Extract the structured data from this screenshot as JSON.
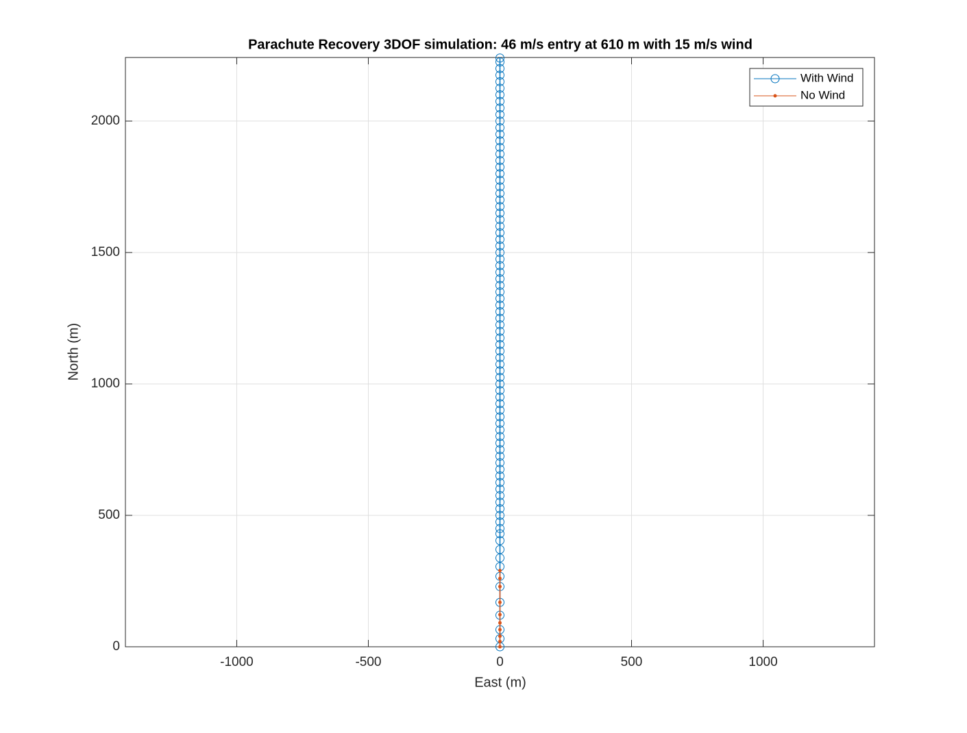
{
  "chart_data": {
    "type": "line",
    "title": "Parachute Recovery 3DOF simulation: 46 m/s entry at 610 m with 15 m/s wind",
    "xlabel": "East (m)",
    "ylabel": "North (m)",
    "xlim": [
      -1423,
      1423
    ],
    "ylim": [
      0,
      2242
    ],
    "xticks": [
      -1000,
      -500,
      0,
      500,
      1000
    ],
    "yticks": [
      0,
      500,
      1000,
      1500,
      2000
    ],
    "grid": true,
    "legend": "northeast",
    "series": [
      {
        "name": "With Wind",
        "color": "#0072BD",
        "marker": "circle",
        "x": [
          0,
          0,
          0,
          0,
          0,
          0,
          0,
          0,
          0,
          0,
          0,
          0,
          0,
          0,
          0,
          0,
          0,
          0,
          0,
          0,
          0,
          0,
          0,
          0,
          0,
          0,
          0,
          0,
          0,
          0,
          0,
          0,
          0,
          0,
          0,
          0,
          0,
          0,
          0,
          0,
          0,
          0,
          0,
          0,
          0,
          0,
          0,
          0,
          0,
          0,
          0,
          0,
          0,
          0,
          0,
          0,
          0,
          0,
          0,
          0,
          0,
          0,
          0,
          0,
          0,
          0,
          0,
          0,
          0,
          0,
          0,
          0,
          0,
          0,
          0,
          0,
          0,
          0,
          0,
          0,
          0,
          0,
          0,
          0,
          0
        ],
        "values": [
          0,
          31,
          65,
          120,
          169,
          229,
          268,
          305,
          338,
          370,
          404,
          430,
          450,
          475,
          500,
          525,
          550,
          575,
          600,
          625,
          650,
          675,
          700,
          725,
          750,
          775,
          800,
          825,
          850,
          875,
          900,
          925,
          950,
          975,
          1000,
          1025,
          1050,
          1075,
          1100,
          1125,
          1150,
          1175,
          1200,
          1225,
          1250,
          1275,
          1300,
          1325,
          1350,
          1375,
          1400,
          1425,
          1450,
          1475,
          1500,
          1525,
          1550,
          1575,
          1600,
          1625,
          1650,
          1675,
          1700,
          1725,
          1750,
          1775,
          1800,
          1825,
          1850,
          1875,
          1900,
          1925,
          1950,
          1975,
          2000,
          2025,
          2050,
          2075,
          2100,
          2125,
          2150,
          2175,
          2200,
          2225,
          2240
        ]
      },
      {
        "name": "No Wind",
        "color": "#D95319",
        "marker": "dot",
        "x": [
          0,
          0,
          0,
          0,
          0,
          0,
          0,
          0,
          0,
          0
        ],
        "values": [
          0,
          20,
          40,
          65,
          91,
          122,
          169,
          229,
          260,
          290
        ]
      }
    ]
  }
}
